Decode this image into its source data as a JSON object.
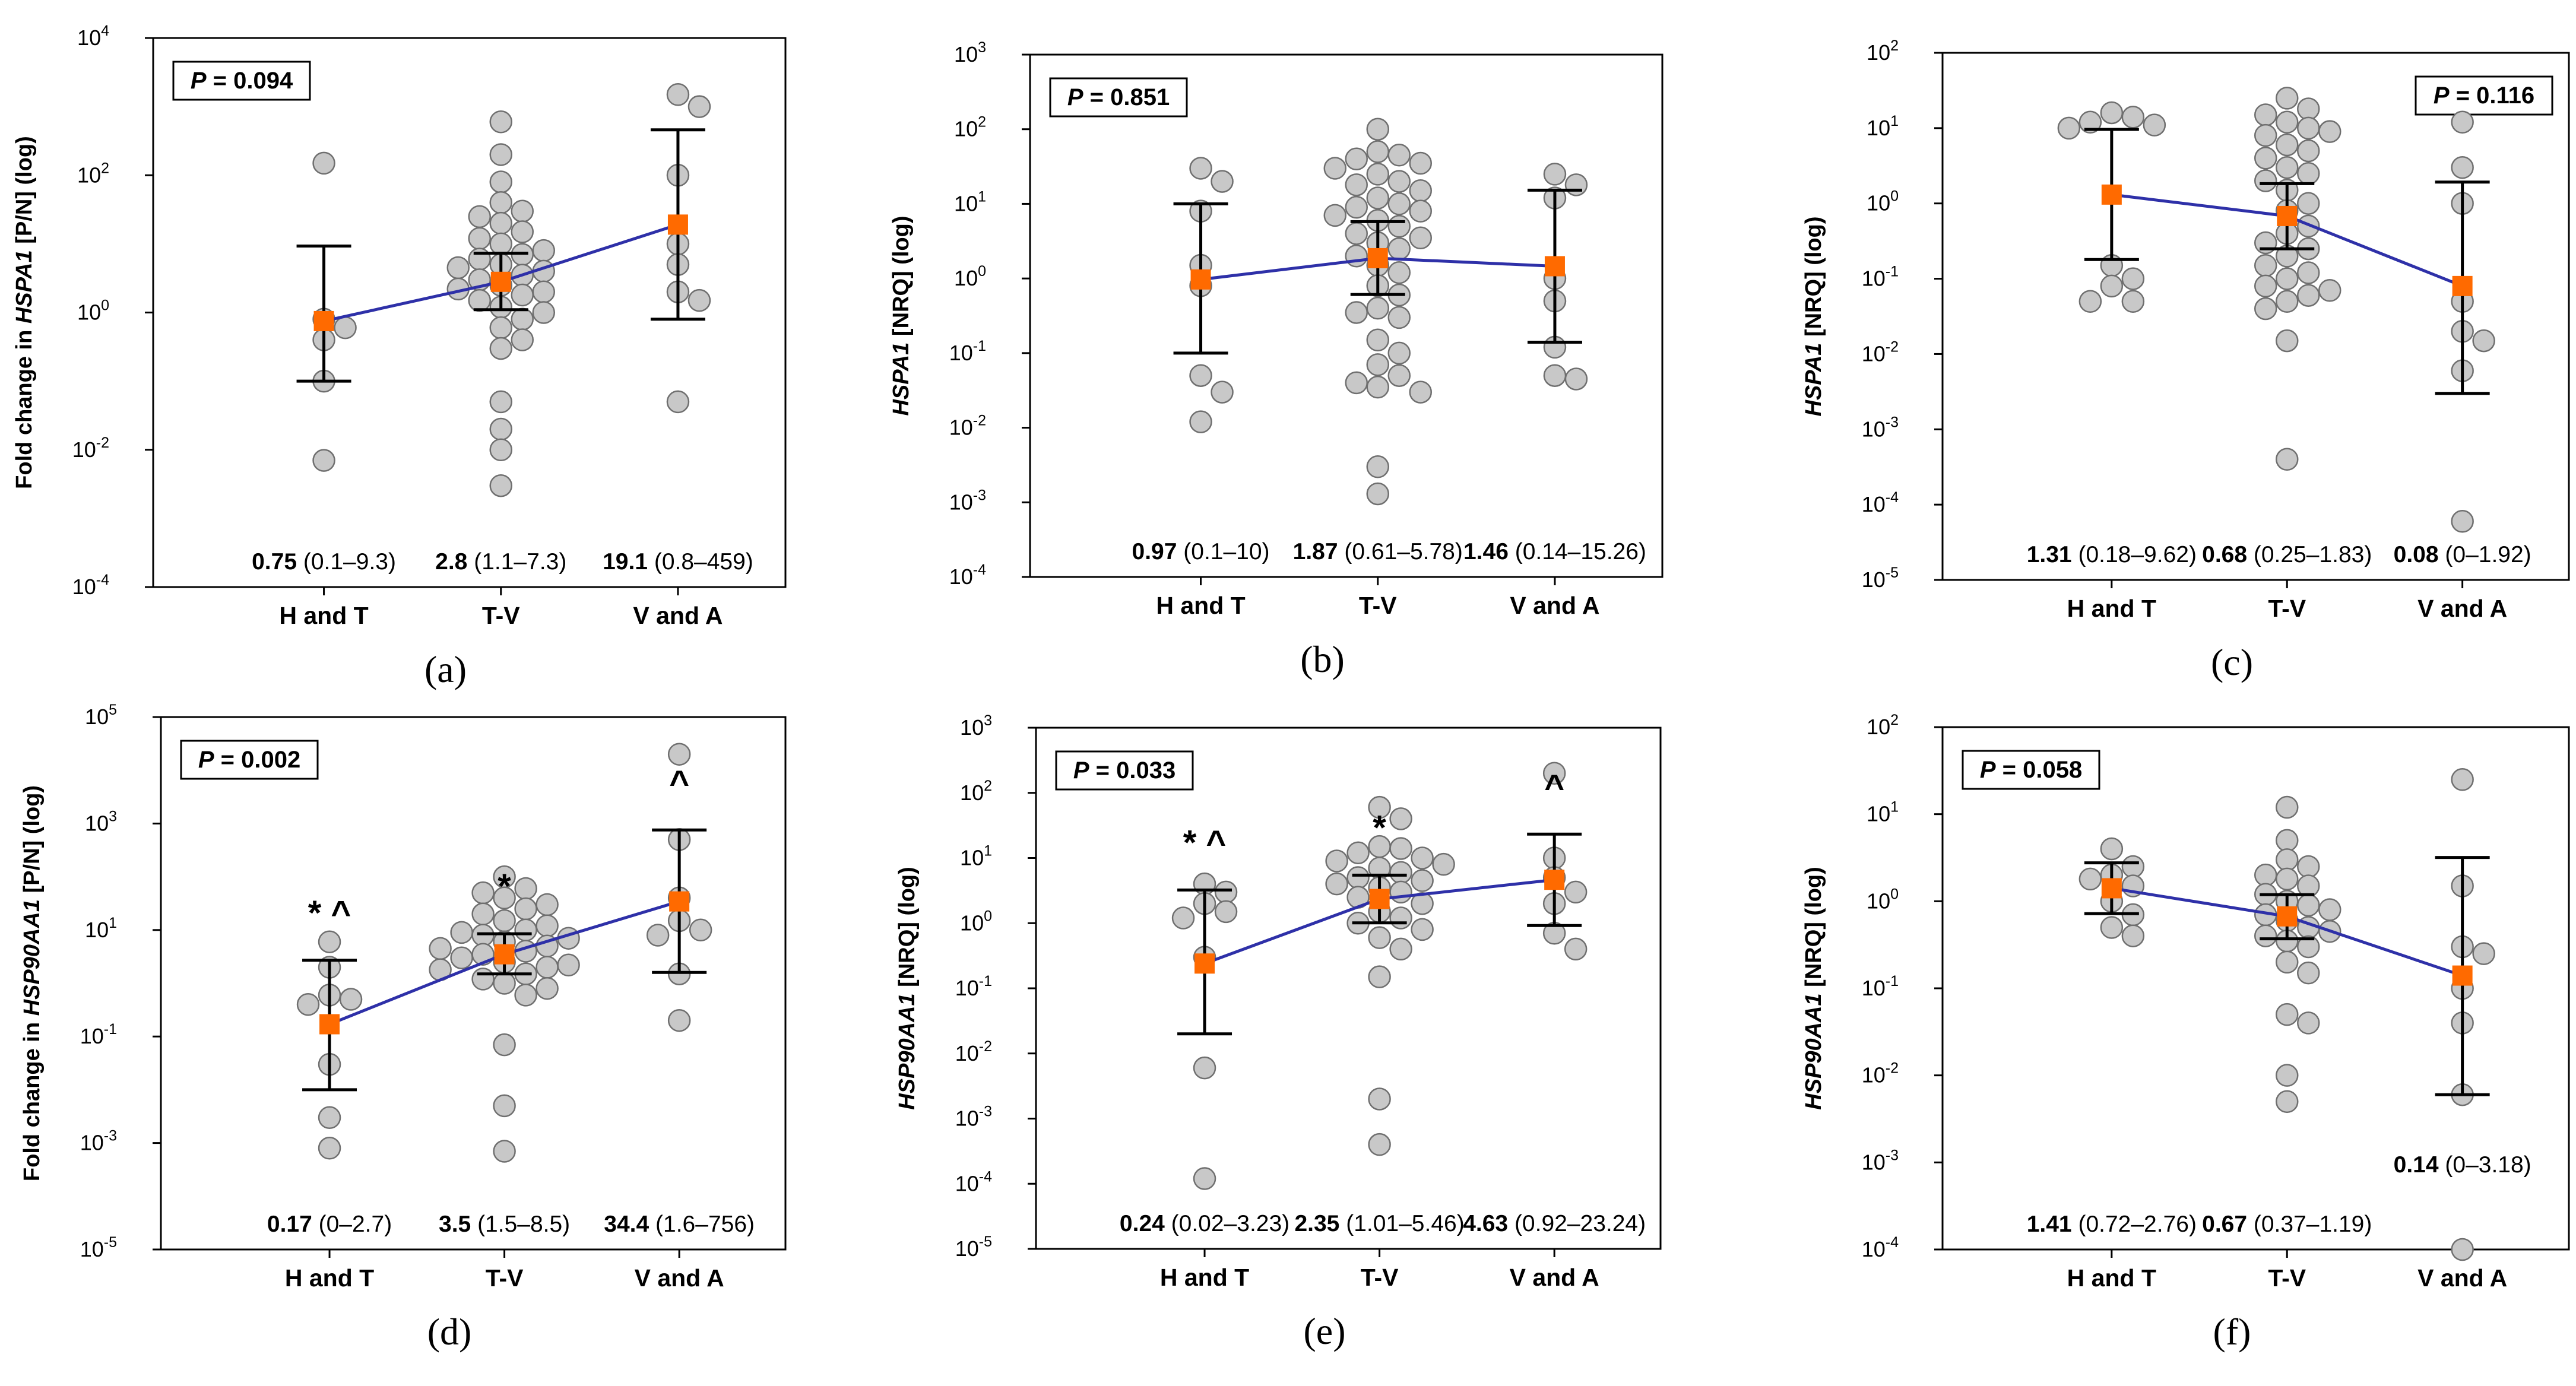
{
  "chart_data": [
    {
      "id": "a",
      "panel_label": "(a)",
      "type": "scatter",
      "gene": "HSPA1",
      "ylabel_pre": "Fold change in ",
      "ylabel_post": "  [P/N] (log)",
      "ytick_exponents": [
        -4,
        -2,
        0,
        2,
        4
      ],
      "ylim_log10": [
        -4,
        4
      ],
      "p_text": "P = 0.094",
      "p_position": "top-left",
      "categories": [
        "H and T",
        "T-V",
        "V and A"
      ],
      "groups": [
        {
          "name": "H and T",
          "median": 0.75,
          "ci": [
            0.1,
            9.3
          ],
          "median_text": "0.75",
          "range_text": "(0.1–9.3)",
          "marker": "",
          "points": [
            150,
            0.8,
            0.6,
            0.4,
            0.1,
            0.007
          ]
        },
        {
          "name": "T-V",
          "median": 2.8,
          "ci": [
            1.1,
            7.3
          ],
          "median_text": "2.8",
          "range_text": "(1.1–7.3)",
          "marker": "",
          "points": [
            600,
            200,
            80,
            40,
            30,
            25,
            20,
            15,
            12,
            10,
            8,
            7,
            6,
            5,
            4.5,
            4,
            3.5,
            3,
            2.5,
            2.2,
            2,
            1.8,
            1.5,
            1.2,
            1,
            0.8,
            0.6,
            0.4,
            0.3,
            0.05,
            0.02,
            0.01,
            0.003
          ]
        },
        {
          "name": "V and A",
          "median": 19.1,
          "ci": [
            0.8,
            459
          ],
          "median_text": "19.1",
          "range_text": "(0.8–459)",
          "marker": "",
          "points": [
            1500,
            1000,
            100,
            10,
            5,
            2,
            1.5,
            0.05
          ]
        }
      ]
    },
    {
      "id": "b",
      "panel_label": "(b)",
      "type": "scatter",
      "gene": "HSPA1",
      "ylabel_pre": "",
      "ylabel_post": "  [NRQ] (log)",
      "ytick_exponents": [
        -4,
        -3,
        -2,
        -1,
        0,
        1,
        2,
        3
      ],
      "ylim_log10": [
        -4,
        3
      ],
      "p_text": "P = 0.851",
      "p_position": "top-left",
      "categories": [
        "H and T",
        "T-V",
        "V and A"
      ],
      "groups": [
        {
          "name": "H and T",
          "median": 0.97,
          "ci": [
            0.1,
            10
          ],
          "median_text": "0.97",
          "range_text": "(0.1–10)",
          "marker": "",
          "points": [
            30,
            20,
            8,
            1.5,
            0.8,
            0.05,
            0.03,
            0.012
          ]
        },
        {
          "name": "T-V",
          "median": 1.87,
          "ci": [
            0.61,
            5.78
          ],
          "median_text": "1.87",
          "range_text": "(0.61–5.78)",
          "marker": "",
          "points": [
            100,
            50,
            45,
            40,
            35,
            30,
            25,
            20,
            18,
            15,
            12,
            10,
            9,
            8,
            7,
            6,
            5,
            4,
            3.5,
            3,
            2.5,
            2,
            1.5,
            1.2,
            0.8,
            0.6,
            0.4,
            0.35,
            0.3,
            0.15,
            0.1,
            0.07,
            0.05,
            0.04,
            0.035,
            0.03,
            0.003,
            0.0013
          ]
        },
        {
          "name": "V and A",
          "median": 1.46,
          "ci": [
            0.14,
            15.26
          ],
          "median_text": "1.46",
          "range_text": "(0.14–15.26)",
          "marker": "",
          "points": [
            25,
            18,
            12,
            1,
            0.5,
            0.12,
            0.05,
            0.045
          ]
        }
      ]
    },
    {
      "id": "c",
      "panel_label": "(c)",
      "type": "scatter",
      "gene": "HSPA1",
      "ylabel_pre": "",
      "ylabel_post": "  [NRQ] (log)",
      "ytick_exponents": [
        -5,
        -4,
        -3,
        -2,
        -1,
        0,
        1,
        2
      ],
      "ylim_log10": [
        -5,
        2
      ],
      "p_text": "P = 0.116",
      "p_position": "top-right",
      "categories": [
        "H and T",
        "T-V",
        "V and A"
      ],
      "groups": [
        {
          "name": "H and T",
          "median": 1.31,
          "ci": [
            0.18,
            9.62
          ],
          "median_text": "1.31",
          "range_text": "(0.18–9.62)",
          "marker": "",
          "points": [
            16,
            14,
            12,
            11,
            10,
            0.15,
            0.1,
            0.08,
            0.05,
            0.05
          ]
        },
        {
          "name": "T-V",
          "median": 0.68,
          "ci": [
            0.25,
            1.83
          ],
          "median_text": "0.68",
          "range_text": "(0.25–1.83)",
          "marker": "",
          "points": [
            25,
            18,
            15,
            12,
            10,
            9,
            8,
            6,
            5,
            4,
            3,
            2.5,
            2,
            1.5,
            1,
            0.8,
            0.5,
            0.4,
            0.3,
            0.25,
            0.2,
            0.15,
            0.12,
            0.1,
            0.08,
            0.07,
            0.06,
            0.05,
            0.04,
            0.015,
            0.0004
          ]
        },
        {
          "name": "V and A",
          "median": 0.08,
          "ci": [
            0.003,
            1.92
          ],
          "median_text": "0.08",
          "range_text": "(0–1.92)",
          "marker": "",
          "points": [
            12,
            3,
            1,
            0.05,
            0.02,
            0.015,
            0.006,
            6e-05
          ]
        }
      ]
    },
    {
      "id": "d",
      "panel_label": "(d)",
      "type": "scatter",
      "gene": "HSP90AA1",
      "ylabel_pre": "Fold change in ",
      "ylabel_post": "  [P/N] (log)",
      "ytick_exponents": [
        -5,
        -3,
        -1,
        1,
        3,
        5
      ],
      "ylim_log10": [
        -5,
        5
      ],
      "p_text": "P = 0.002",
      "p_position": "top-left",
      "categories": [
        "H and T",
        "T-V",
        "V and A"
      ],
      "groups": [
        {
          "name": "H and T",
          "median": 0.17,
          "ci": [
            0.01,
            2.7
          ],
          "median_text": "0.17",
          "range_text": "(0–2.7)",
          "marker": "* ^",
          "points": [
            6,
            2,
            0.6,
            0.5,
            0.4,
            0.03,
            0.003,
            0.0008
          ]
        },
        {
          "name": "T-V",
          "median": 3.5,
          "ci": [
            1.5,
            8.5
          ],
          "median_text": "3.5",
          "range_text": "(1.5–8.5)",
          "marker": "*",
          "points": [
            100,
            60,
            50,
            40,
            30,
            25,
            20,
            15,
            12,
            10,
            9,
            8,
            7,
            6,
            5,
            4.5,
            4,
            3.5,
            3,
            2.5,
            2.2,
            2,
            1.8,
            1.5,
            1.2,
            1,
            0.8,
            0.6,
            0.07,
            0.005,
            0.0007
          ]
        },
        {
          "name": "V and A",
          "median": 34.4,
          "ci": [
            1.6,
            756
          ],
          "median_text": "34.4",
          "range_text": "(1.6–756)",
          "marker": "^",
          "points": [
            20000,
            500,
            40,
            15,
            10,
            8,
            1.5,
            0.2
          ]
        }
      ]
    },
    {
      "id": "e",
      "panel_label": "(e)",
      "type": "scatter",
      "gene": "HSP90AA1",
      "ylabel_pre": "",
      "ylabel_post": " [NRQ] (log)",
      "ytick_exponents": [
        -5,
        -4,
        -3,
        -2,
        -1,
        0,
        1,
        2,
        3
      ],
      "ylim_log10": [
        -5,
        3
      ],
      "p_text": "P = 0.033",
      "p_position": "top-left",
      "categories": [
        "H and T",
        "T-V",
        "V and A"
      ],
      "groups": [
        {
          "name": "H and T",
          "median": 0.24,
          "ci": [
            0.02,
            3.23
          ],
          "median_text": "0.24",
          "range_text": "(0.02–3.23)",
          "marker": "* ^",
          "points": [
            4,
            3,
            2,
            1.5,
            1.2,
            0.3,
            0.006,
            0.00012
          ]
        },
        {
          "name": "T-V",
          "median": 2.35,
          "ci": [
            1.01,
            5.46
          ],
          "median_text": "2.35",
          "range_text": "(1.01–5.46)",
          "marker": "*",
          "points": [
            60,
            40,
            15,
            14,
            12,
            10,
            9,
            8,
            7,
            6,
            5,
            4.5,
            4,
            3.5,
            3,
            2.5,
            2,
            1.5,
            1.2,
            1,
            0.8,
            0.6,
            0.4,
            0.15,
            0.002,
            0.0004
          ]
        },
        {
          "name": "V and A",
          "median": 4.63,
          "ci": [
            0.92,
            23.24
          ],
          "median_text": "4.63",
          "range_text": "(0.92–23.24)",
          "marker": "^",
          "points": [
            200,
            10,
            5,
            3,
            2,
            0.7,
            0.4
          ]
        }
      ]
    },
    {
      "id": "f",
      "panel_label": "(f)",
      "type": "scatter",
      "gene": "HSP90AA1",
      "ylabel_pre": "",
      "ylabel_post": "  [NRQ] (log)",
      "ytick_exponents": [
        -4,
        -3,
        -2,
        -1,
        0,
        1,
        2
      ],
      "ylim_log10": [
        -4,
        2
      ],
      "p_text": "P = 0.058",
      "p_position": "top-left",
      "categories": [
        "H and T",
        "T-V",
        "V and A"
      ],
      "groups": [
        {
          "name": "H and T",
          "median": 1.41,
          "ci": [
            0.72,
            2.76
          ],
          "median_text": "1.41",
          "range_text": "(0.72–2.76)",
          "marker": "",
          "points": [
            4,
            2.5,
            2,
            1.8,
            1.5,
            1,
            0.7,
            0.5,
            0.4
          ]
        },
        {
          "name": "T-V",
          "median": 0.67,
          "ci": [
            0.37,
            1.19
          ],
          "median_text": "0.67",
          "range_text": "(0.37–1.19)",
          "marker": "",
          "points": [
            12,
            5,
            3,
            2.5,
            2,
            1.8,
            1.5,
            1.2,
            1,
            0.9,
            0.8,
            0.7,
            0.6,
            0.5,
            0.45,
            0.4,
            0.35,
            0.3,
            0.2,
            0.15,
            0.05,
            0.04,
            0.01,
            0.005
          ]
        },
        {
          "name": "V and A",
          "median": 0.14,
          "ci": [
            0.006,
            3.18
          ],
          "median_text": "0.14",
          "range_text": "(0–3.18)",
          "marker": "",
          "points": [
            25,
            1.5,
            0.3,
            0.25,
            0.1,
            0.04,
            0.006,
            0.0001
          ]
        }
      ]
    }
  ]
}
